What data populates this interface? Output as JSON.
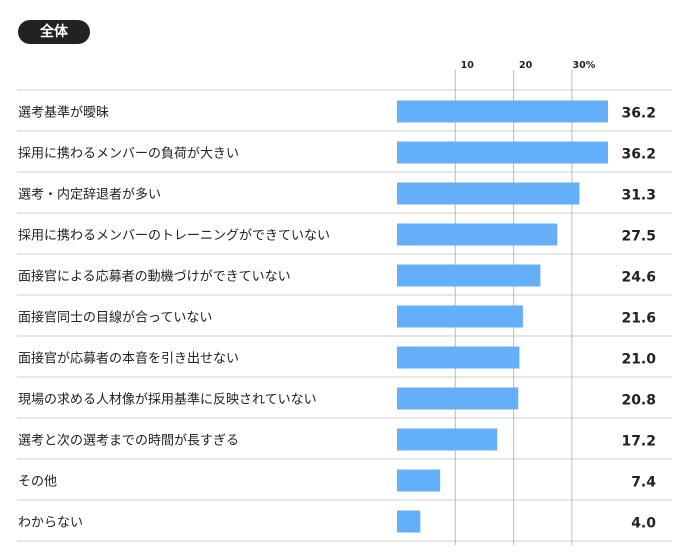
{
  "badge": "全体",
  "chart_data": {
    "type": "bar",
    "orientation": "horizontal",
    "title": "全体",
    "xlim": [
      0,
      36.2
    ],
    "ticks": [
      {
        "value": 10,
        "label": "10"
      },
      {
        "value": 20,
        "label": "20"
      },
      {
        "value": 30,
        "label": "30%"
      }
    ],
    "categories": [
      "選考基準が曖昧",
      "採用に携わるメンバーの負荷が大きい",
      "選考・内定辞退者が多い",
      "採用に携わるメンバーのトレーニングができていない",
      "面接官による応募者の動機づけができていない",
      "面接官同士の目線が合っていない",
      "面接官が応募者の本音を引き出せない",
      "現場の求める人材像が採用基準に反映されていない",
      "選考と次の選考までの時間が長すぎる",
      "その他",
      "わからない"
    ],
    "values": [
      36.2,
      36.2,
      31.3,
      27.5,
      24.6,
      21.6,
      21.0,
      20.8,
      17.2,
      7.4,
      4.0
    ],
    "value_labels": [
      "36.2",
      "36.2",
      "31.3",
      "27.5",
      "24.6",
      "21.6",
      "21.0",
      "20.8",
      "17.2",
      "7.4",
      "4.0"
    ],
    "bar_color": "#64affa"
  }
}
